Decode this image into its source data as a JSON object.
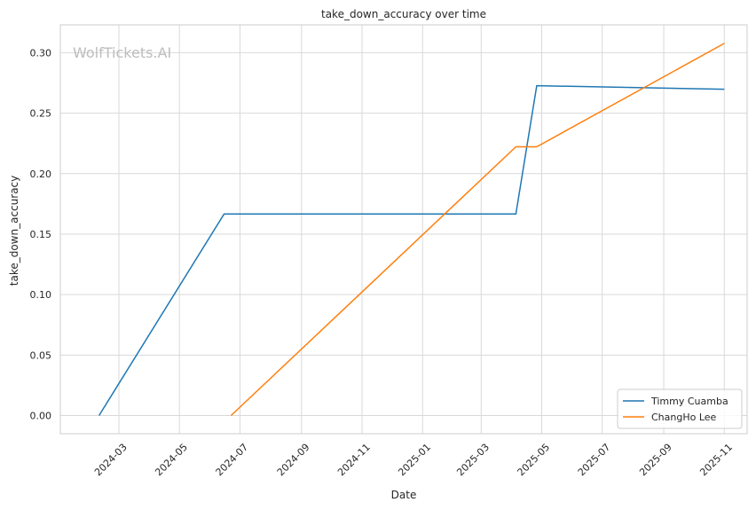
{
  "chart_data": {
    "type": "line",
    "title": "take_down_accuracy over time",
    "xlabel": "Date",
    "ylabel": "take_down_accuracy",
    "watermark": "WolfTickets.AI",
    "xlim": [
      "2024-01-02",
      "2025-11-24"
    ],
    "ylim": [
      -0.015,
      0.323
    ],
    "x_ticks": [
      "2024-03",
      "2024-05",
      "2024-07",
      "2024-09",
      "2024-11",
      "2025-01",
      "2025-03",
      "2025-05",
      "2025-07",
      "2025-09",
      "2025-11"
    ],
    "y_ticks": [
      "0.00",
      "0.05",
      "0.10",
      "0.15",
      "0.20",
      "0.25",
      "0.30"
    ],
    "grid": true,
    "legend": "lower-right",
    "series": [
      {
        "name": "Timmy Cuamba",
        "color": "#1f77b4",
        "x": [
          "2024-02-10",
          "2024-06-15",
          "2025-04-05",
          "2025-04-26",
          "2025-11-01"
        ],
        "y": [
          0.0,
          0.1667,
          0.1667,
          0.2727,
          0.2698
        ]
      },
      {
        "name": "ChangHo Lee",
        "color": "#ff7f0e",
        "x": [
          "2024-06-22",
          "2025-04-05",
          "2025-04-26",
          "2025-11-01"
        ],
        "y": [
          0.0,
          0.2222,
          0.2222,
          0.3077
        ]
      }
    ]
  }
}
